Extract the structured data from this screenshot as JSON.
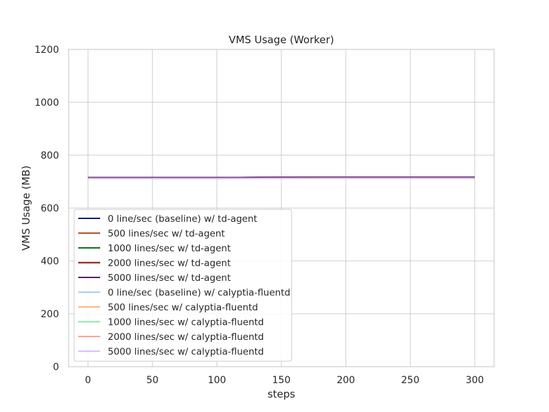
{
  "chart_data": {
    "type": "line",
    "title": "VMS Usage (Worker)",
    "xlabel": "steps",
    "ylabel": "VMS Usage (MB)",
    "xlim": [
      -15,
      315
    ],
    "ylim": [
      0,
      1200
    ],
    "xticks": [
      0,
      50,
      100,
      150,
      200,
      250,
      300
    ],
    "yticks": [
      0,
      200,
      400,
      600,
      800,
      1000,
      1200
    ],
    "grid": true,
    "legend_position": "lower-left",
    "series": [
      {
        "name": "0 line/sec (baseline) w/ td-agent",
        "color": "#001c7f",
        "x": [
          0,
          100,
          185,
          300
        ],
        "y": [
          716,
          716,
          717,
          717
        ]
      },
      {
        "name": "500 lines/sec w/ td-agent",
        "color": "#b1400d",
        "x": [
          0,
          100,
          185,
          300
        ],
        "y": [
          716,
          716,
          717,
          717
        ]
      },
      {
        "name": "1000 lines/sec w/ td-agent",
        "color": "#12711c",
        "x": [
          0,
          100,
          185,
          300
        ],
        "y": [
          716,
          716,
          717,
          717
        ]
      },
      {
        "name": "2000 lines/sec w/ td-agent",
        "color": "#8c0800",
        "x": [
          0,
          100,
          185,
          300
        ],
        "y": [
          716,
          716,
          717,
          717
        ]
      },
      {
        "name": "5000 lines/sec w/ td-agent",
        "color": "#591e71",
        "x": [
          0,
          100,
          185,
          300
        ],
        "y": [
          716,
          716,
          717,
          717
        ]
      },
      {
        "name": "0 line/sec (baseline) w/ calyptia-fluentd",
        "color": "#a1c9f4",
        "x": [
          0,
          100,
          185,
          300
        ],
        "y": [
          712,
          712,
          713,
          713
        ]
      },
      {
        "name": "500 lines/sec w/ calyptia-fluentd",
        "color": "#ffb482",
        "x": [
          0,
          100,
          185,
          300
        ],
        "y": [
          712,
          712,
          713,
          713
        ]
      },
      {
        "name": "1000 lines/sec w/ calyptia-fluentd",
        "color": "#8de5a1",
        "x": [
          0,
          100,
          185,
          300
        ],
        "y": [
          712,
          712,
          713,
          713
        ]
      },
      {
        "name": "2000 lines/sec w/ calyptia-fluentd",
        "color": "#ff9f9b",
        "x": [
          0,
          100,
          185,
          300
        ],
        "y": [
          712,
          712,
          713,
          713
        ]
      },
      {
        "name": "5000 lines/sec w/ calyptia-fluentd",
        "color": "#d0bbff",
        "x": [
          0,
          100,
          185,
          300
        ],
        "y": [
          713,
          713,
          714,
          714
        ]
      }
    ]
  }
}
